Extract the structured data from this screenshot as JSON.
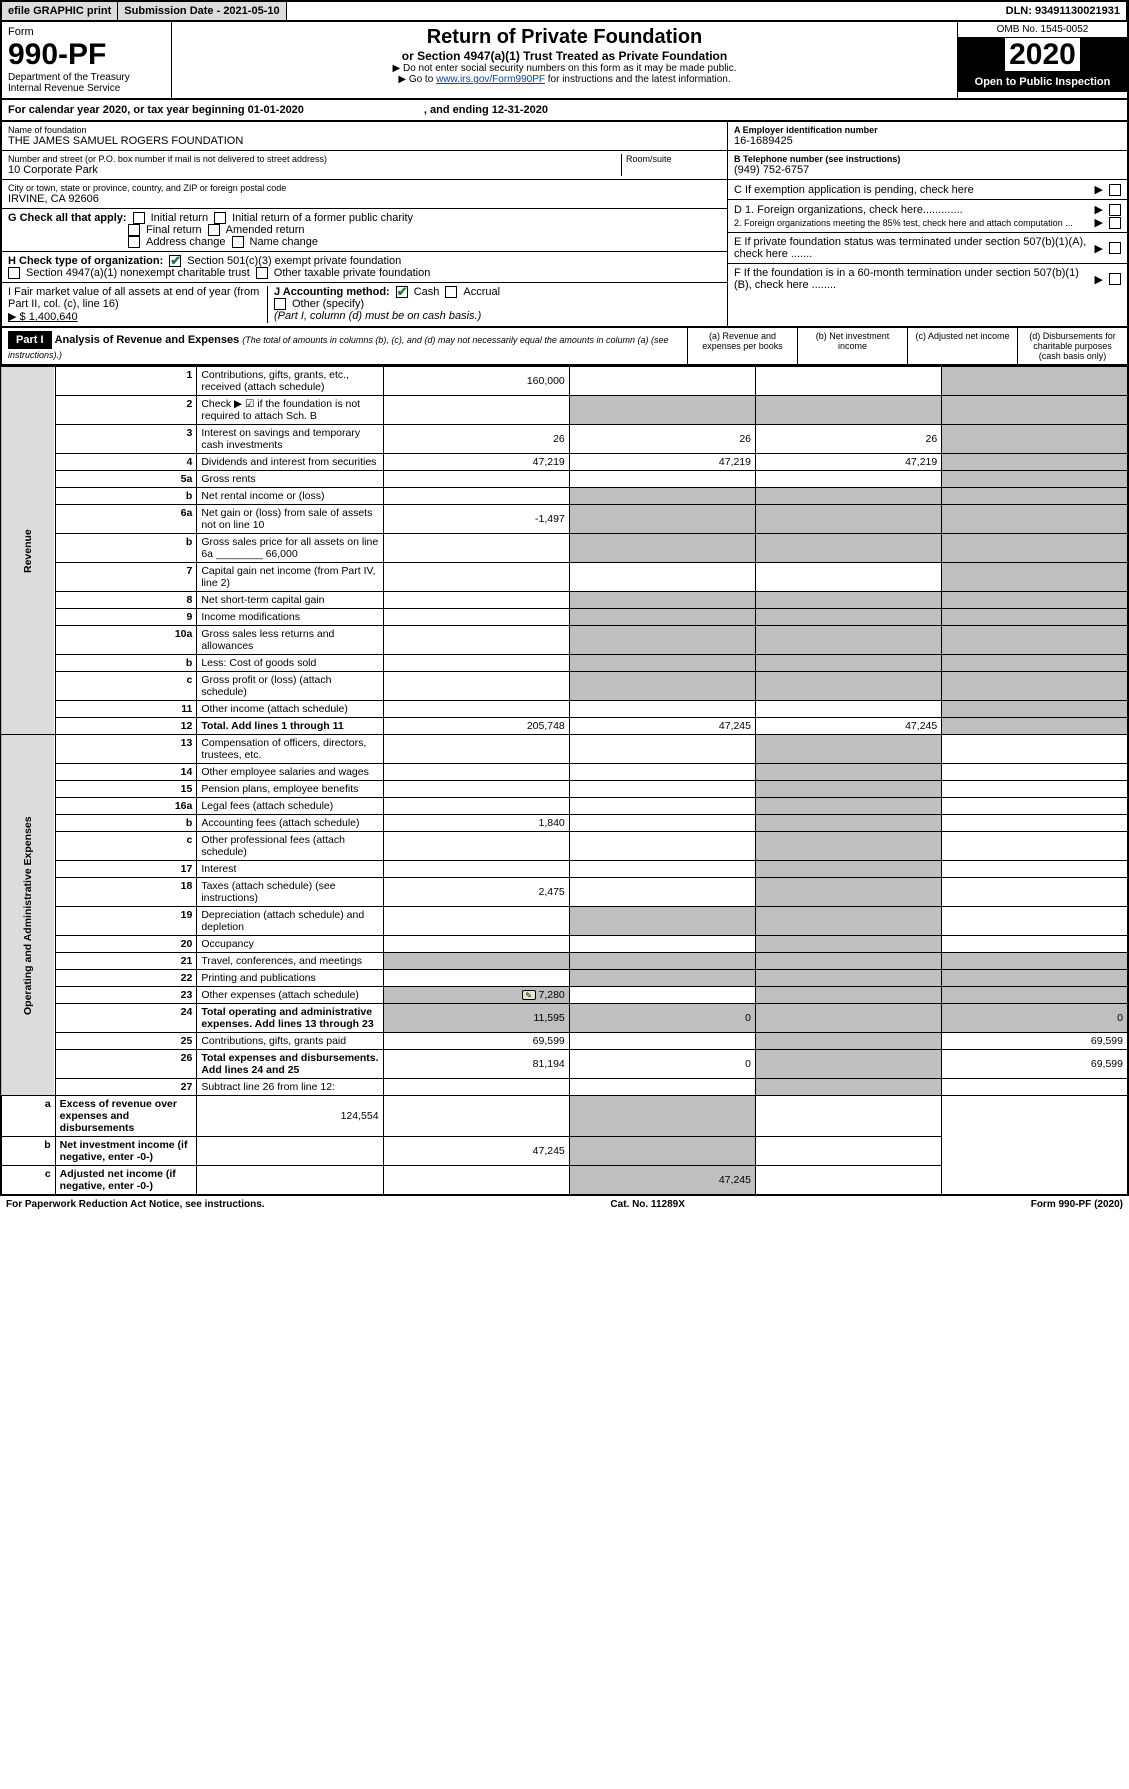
{
  "topbar": {
    "efile": "efile GRAPHIC print",
    "sub_label": "Submission Date - 2021-05-10",
    "dln": "DLN: 93491130021931"
  },
  "header": {
    "form_word": "Form",
    "form_num": "990-PF",
    "dept": "Department of the Treasury",
    "irs": "Internal Revenue Service",
    "title": "Return of Private Foundation",
    "sub": "or Section 4947(a)(1) Trust Treated as Private Foundation",
    "note1": "▶ Do not enter social security numbers on this form as it may be made public.",
    "note2_pre": "▶ Go to ",
    "note2_link": "www.irs.gov/Form990PF",
    "note2_post": " for instructions and the latest information.",
    "omb": "OMB No. 1545-0052",
    "year": "2020",
    "open": "Open to Public Inspection"
  },
  "cal": {
    "text_a": "For calendar year 2020, or tax year beginning 01-01-2020",
    "text_b": ", and ending 12-31-2020"
  },
  "info": {
    "name_lbl": "Name of foundation",
    "name": "THE JAMES SAMUEL ROGERS FOUNDATION",
    "addr_lbl": "Number and street (or P.O. box number if mail is not delivered to street address)",
    "room_lbl": "Room/suite",
    "addr": "10 Corporate Park",
    "city_lbl": "City or town, state or province, country, and ZIP or foreign postal code",
    "city": "IRVINE, CA  92606",
    "ein_lbl": "A Employer identification number",
    "ein": "16-1689425",
    "phone_lbl": "B Telephone number (see instructions)",
    "phone": "(949) 752-6757",
    "c_lbl": "C  If exemption application is pending, check here",
    "d1": "D 1. Foreign organizations, check here.............",
    "d2": "2. Foreign organizations meeting the 85% test, check here and attach computation ...",
    "e": "E  If private foundation status was terminated under section 507(b)(1)(A), check here .......",
    "f": "F  If the foundation is in a 60-month termination under section 507(b)(1)(B), check here ........",
    "g_lbl": "G Check all that apply:",
    "g_opts": [
      "Initial return",
      "Initial return of a former public charity",
      "Final return",
      "Amended return",
      "Address change",
      "Name change"
    ],
    "h_lbl": "H Check type of organization:",
    "h1": "Section 501(c)(3) exempt private foundation",
    "h2": "Section 4947(a)(1) nonexempt charitable trust",
    "h3": "Other taxable private foundation",
    "i_lbl": "I Fair market value of all assets at end of year (from Part II, col. (c), line 16)",
    "i_val": "▶ $  1,400,640",
    "j_lbl": "J Accounting method:",
    "j_cash": "Cash",
    "j_acc": "Accrual",
    "j_other": "Other (specify)",
    "j_note": "(Part I, column (d) must be on cash basis.)"
  },
  "part1": {
    "label": "Part I",
    "title": "Analysis of Revenue and Expenses",
    "title_note": "(The total of amounts in columns (b), (c), and (d) may not necessarily equal the amounts in column (a) (see instructions).)",
    "col_a": "(a)   Revenue and expenses per books",
    "col_b": "(b)  Net investment income",
    "col_c": "(c)  Adjusted net income",
    "col_d": "(d)  Disbursements for charitable purposes (cash basis only)"
  },
  "sections": {
    "rev": "Revenue",
    "ope": "Operating and Administrative Expenses"
  },
  "lines": [
    {
      "n": "1",
      "d": "Contributions, gifts, grants, etc., received (attach schedule)",
      "a": "160,000"
    },
    {
      "n": "2",
      "d": "Check ▶ ☑ if the foundation is not required to attach Sch. B"
    },
    {
      "n": "3",
      "d": "Interest on savings and temporary cash investments",
      "a": "26",
      "b": "26",
      "c": "26"
    },
    {
      "n": "4",
      "d": "Dividends and interest from securities",
      "a": "47,219",
      "b": "47,219",
      "c": "47,219"
    },
    {
      "n": "5a",
      "d": "Gross rents"
    },
    {
      "n": "b",
      "d": "Net rental income or (loss)"
    },
    {
      "n": "6a",
      "d": "Net gain or (loss) from sale of assets not on line 10",
      "a": "-1,497"
    },
    {
      "n": "b",
      "d": "Gross sales price for all assets on line 6a ________ 66,000"
    },
    {
      "n": "7",
      "d": "Capital gain net income (from Part IV, line 2)"
    },
    {
      "n": "8",
      "d": "Net short-term capital gain"
    },
    {
      "n": "9",
      "d": "Income modifications"
    },
    {
      "n": "10a",
      "d": "Gross sales less returns and allowances"
    },
    {
      "n": "b",
      "d": "Less: Cost of goods sold"
    },
    {
      "n": "c",
      "d": "Gross profit or (loss) (attach schedule)"
    },
    {
      "n": "11",
      "d": "Other income (attach schedule)"
    },
    {
      "n": "12",
      "d": "Total. Add lines 1 through 11",
      "a": "205,748",
      "b": "47,245",
      "c": "47,245",
      "bold": true
    },
    {
      "n": "13",
      "d": "Compensation of officers, directors, trustees, etc."
    },
    {
      "n": "14",
      "d": "Other employee salaries and wages"
    },
    {
      "n": "15",
      "d": "Pension plans, employee benefits"
    },
    {
      "n": "16a",
      "d": "Legal fees (attach schedule)"
    },
    {
      "n": "b",
      "d": "Accounting fees (attach schedule)",
      "a": "1,840"
    },
    {
      "n": "c",
      "d": "Other professional fees (attach schedule)"
    },
    {
      "n": "17",
      "d": "Interest"
    },
    {
      "n": "18",
      "d": "Taxes (attach schedule) (see instructions)",
      "a": "2,475"
    },
    {
      "n": "19",
      "d": "Depreciation (attach schedule) and depletion"
    },
    {
      "n": "20",
      "d": "Occupancy"
    },
    {
      "n": "21",
      "d": "Travel, conferences, and meetings"
    },
    {
      "n": "22",
      "d": "Printing and publications"
    },
    {
      "n": "23",
      "d": "Other expenses (attach schedule)",
      "a": "7,280",
      "icon": true
    },
    {
      "n": "24",
      "d": "Total operating and administrative expenses. Add lines 13 through 23",
      "a": "11,595",
      "b": "0",
      "d4": "0",
      "bold": true
    },
    {
      "n": "25",
      "d": "Contributions, gifts, grants paid",
      "a": "69,599",
      "d4": "69,599"
    },
    {
      "n": "26",
      "d": "Total expenses and disbursements. Add lines 24 and 25",
      "a": "81,194",
      "b": "0",
      "d4": "69,599",
      "bold": true
    },
    {
      "n": "27",
      "d": "Subtract line 26 from line 12:"
    },
    {
      "n": "a",
      "d": "Excess of revenue over expenses and disbursements",
      "a": "124,554",
      "bold": true
    },
    {
      "n": "b",
      "d": "Net investment income (if negative, enter -0-)",
      "b": "47,245",
      "bold": true
    },
    {
      "n": "c",
      "d": "Adjusted net income (if negative, enter -0-)",
      "c": "47,245",
      "bold": true
    }
  ],
  "footer": {
    "left": "For Paperwork Reduction Act Notice, see instructions.",
    "mid": "Cat. No. 11289X",
    "right": "Form 990-PF (2020)"
  }
}
